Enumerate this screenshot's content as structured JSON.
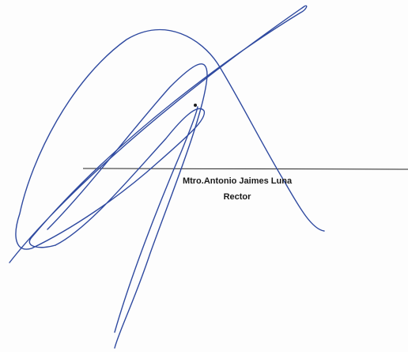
{
  "signature_block": {
    "name": "Mtro.Antonio Jaimes Luna",
    "position": "Rector"
  }
}
